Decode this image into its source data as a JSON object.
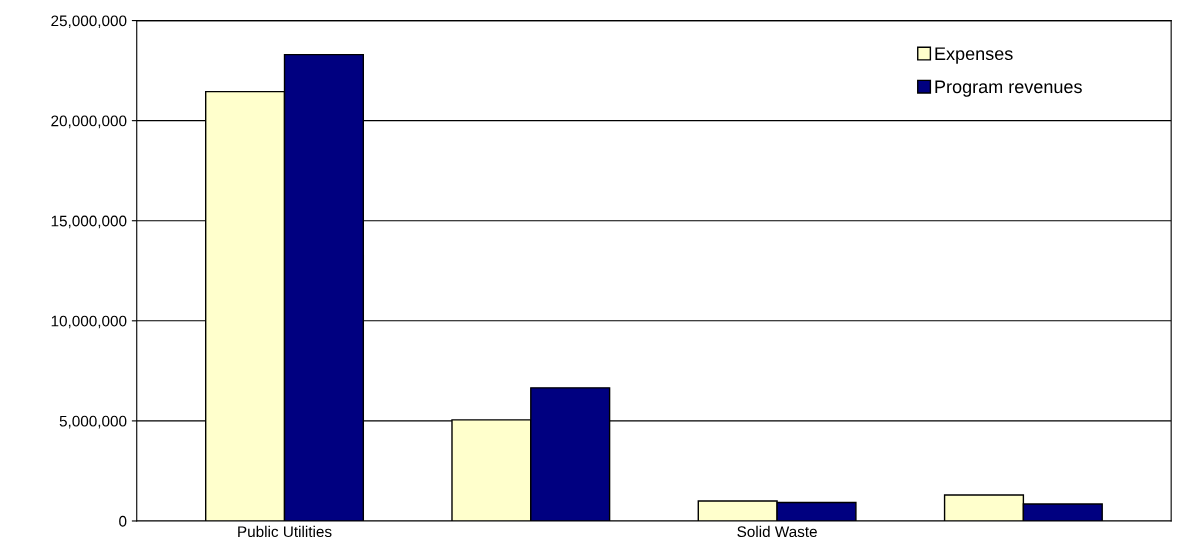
{
  "chart_data": {
    "type": "bar",
    "categories": [
      "Public Utilities",
      null,
      "Solid Waste",
      null
    ],
    "series": [
      {
        "name": "Expenses",
        "color": "#ffffcc",
        "values": [
          21450000,
          5050000,
          1000000,
          1300000
        ]
      },
      {
        "name": "Program revenues",
        "color": "#000080",
        "values": [
          23300000,
          6650000,
          920000,
          850000
        ]
      }
    ],
    "ylim": [
      0,
      25000000
    ],
    "yticks": [
      {
        "value": 0,
        "label": "0"
      },
      {
        "value": 5000000,
        "label": "5,000,000"
      },
      {
        "value": 10000000,
        "label": "10,000,000"
      },
      {
        "value": 15000000,
        "label": "15,000,000"
      },
      {
        "value": 20000000,
        "label": "20,000,000"
      },
      {
        "value": 25000000,
        "label": "25,000,000"
      }
    ],
    "grid": "y",
    "legend": "top right"
  }
}
